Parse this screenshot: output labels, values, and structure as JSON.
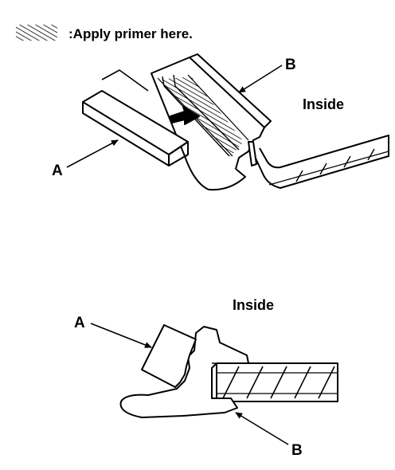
{
  "legend": {
    "text": ":Apply primer here."
  },
  "top_view": {
    "label_a": "A",
    "label_b": "B",
    "label_inside": "Inside"
  },
  "bottom_view": {
    "label_a": "A",
    "label_b": "B",
    "label_inside": "Inside"
  },
  "colors": {
    "ink": "#000000",
    "paper": "#ffffff"
  }
}
